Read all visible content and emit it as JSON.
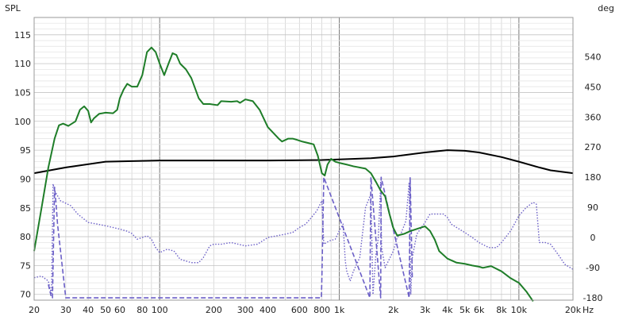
{
  "chart_data": {
    "type": "line",
    "title": "",
    "left_axis_label": "SPL",
    "right_axis_label": "deg",
    "x_unit_label": "Hz",
    "x_scale": "log",
    "xlim": [
      20,
      20000
    ],
    "ylim_left": [
      69,
      118
    ],
    "ylim_right": [
      -187,
      657
    ],
    "grid": true,
    "x_ticks": [
      {
        "value": 20,
        "label": "20"
      },
      {
        "value": 30,
        "label": "30"
      },
      {
        "value": 40,
        "label": "40"
      },
      {
        "value": 50,
        "label": "50"
      },
      {
        "value": 60,
        "label": "60"
      },
      {
        "value": 80,
        "label": "80"
      },
      {
        "value": 100,
        "label": "100"
      },
      {
        "value": 200,
        "label": "200"
      },
      {
        "value": 300,
        "label": "300"
      },
      {
        "value": 400,
        "label": "400"
      },
      {
        "value": 600,
        "label": "600"
      },
      {
        "value": 800,
        "label": "800"
      },
      {
        "value": 1000,
        "label": "1k"
      },
      {
        "value": 2000,
        "label": "2k"
      },
      {
        "value": 3000,
        "label": "3k"
      },
      {
        "value": 4000,
        "label": "4k"
      },
      {
        "value": 5000,
        "label": "5k"
      },
      {
        "value": 6000,
        "label": "6k"
      },
      {
        "value": 8000,
        "label": "8k"
      },
      {
        "value": 10000,
        "label": "10k"
      },
      {
        "value": 20000,
        "label": "20k"
      }
    ],
    "y_ticks_left": [
      {
        "value": 70,
        "label": "70"
      },
      {
        "value": 75,
        "label": "75"
      },
      {
        "value": 80,
        "label": "80"
      },
      {
        "value": 85,
        "label": "85"
      },
      {
        "value": 90,
        "label": "90"
      },
      {
        "value": 95,
        "label": "95"
      },
      {
        "value": 100,
        "label": "100"
      },
      {
        "value": 105,
        "label": "105"
      },
      {
        "value": 110,
        "label": "110"
      },
      {
        "value": 115,
        "label": "115"
      }
    ],
    "y_ticks_right": [
      {
        "value": -180,
        "label": "-180"
      },
      {
        "value": -90,
        "label": "-90"
      },
      {
        "value": 0,
        "label": "0"
      },
      {
        "value": 90,
        "label": "90"
      },
      {
        "value": 180,
        "label": "180"
      },
      {
        "value": 270,
        "label": "270"
      },
      {
        "value": 360,
        "label": "360"
      },
      {
        "value": 450,
        "label": "450"
      },
      {
        "value": 540,
        "label": "540"
      }
    ],
    "series": [
      {
        "axis": "left",
        "color": "#1e7d28",
        "style": "solid",
        "points": [
          [
            20,
            77.5
          ],
          [
            22,
            85
          ],
          [
            24,
            92
          ],
          [
            26,
            97
          ],
          [
            27.5,
            99.3
          ],
          [
            29,
            99.6
          ],
          [
            31,
            99.2
          ],
          [
            34,
            100
          ],
          [
            36,
            102
          ],
          [
            38,
            102.6
          ],
          [
            40,
            101.8
          ],
          [
            41.5,
            99.8
          ],
          [
            43,
            100.5
          ],
          [
            46,
            101.3
          ],
          [
            50,
            101.5
          ],
          [
            55,
            101.4
          ],
          [
            58,
            102
          ],
          [
            60,
            104
          ],
          [
            63,
            105.5
          ],
          [
            66,
            106.5
          ],
          [
            70,
            106
          ],
          [
            75,
            106
          ],
          [
            80,
            108
          ],
          [
            85,
            112
          ],
          [
            90,
            112.8
          ],
          [
            95,
            112
          ],
          [
            100,
            110
          ],
          [
            106,
            108
          ],
          [
            112,
            110
          ],
          [
            118,
            111.8
          ],
          [
            124,
            111.5
          ],
          [
            130,
            110
          ],
          [
            140,
            109
          ],
          [
            150,
            107.5
          ],
          [
            165,
            104
          ],
          [
            175,
            103
          ],
          [
            190,
            103
          ],
          [
            210,
            102.8
          ],
          [
            220,
            103.5
          ],
          [
            250,
            103.4
          ],
          [
            270,
            103.5
          ],
          [
            280,
            103.2
          ],
          [
            300,
            103.8
          ],
          [
            330,
            103.5
          ],
          [
            360,
            102
          ],
          [
            400,
            99
          ],
          [
            460,
            97
          ],
          [
            480,
            96.5
          ],
          [
            520,
            97
          ],
          [
            550,
            97
          ],
          [
            580,
            96.8
          ],
          [
            620,
            96.5
          ],
          [
            680,
            96.2
          ],
          [
            720,
            96
          ],
          [
            760,
            94
          ],
          [
            800,
            91
          ],
          [
            830,
            90.6
          ],
          [
            860,
            92.5
          ],
          [
            900,
            93.5
          ],
          [
            950,
            93
          ],
          [
            1000,
            92.8
          ],
          [
            1100,
            92.5
          ],
          [
            1200,
            92.2
          ],
          [
            1400,
            91.8
          ],
          [
            1500,
            91
          ],
          [
            1600,
            89.5
          ],
          [
            1700,
            88
          ],
          [
            1800,
            87
          ],
          [
            1900,
            84
          ],
          [
            2000,
            81.5
          ],
          [
            2100,
            80.2
          ],
          [
            2300,
            80.5
          ],
          [
            2500,
            81
          ],
          [
            2800,
            81.5
          ],
          [
            3000,
            81.8
          ],
          [
            3200,
            81
          ],
          [
            3400,
            79.5
          ],
          [
            3600,
            77.5
          ],
          [
            4000,
            76.2
          ],
          [
            4500,
            75.5
          ],
          [
            5000,
            75.3
          ],
          [
            5500,
            75
          ],
          [
            6000,
            74.8
          ],
          [
            6300,
            74.6
          ],
          [
            7000,
            74.9
          ],
          [
            8000,
            74
          ],
          [
            9000,
            72.8
          ],
          [
            10000,
            72
          ],
          [
            11000,
            70.5
          ],
          [
            12000,
            68.8
          ]
        ]
      },
      {
        "axis": "left",
        "color": "#000000",
        "style": "solid",
        "points": [
          [
            20,
            91
          ],
          [
            30,
            92
          ],
          [
            50,
            93
          ],
          [
            100,
            93.2
          ],
          [
            200,
            93.2
          ],
          [
            400,
            93.2
          ],
          [
            800,
            93.3
          ],
          [
            1000,
            93.4
          ],
          [
            1500,
            93.6
          ],
          [
            2000,
            93.9
          ],
          [
            3000,
            94.6
          ],
          [
            4000,
            95
          ],
          [
            5000,
            94.9
          ],
          [
            6000,
            94.6
          ],
          [
            8000,
            93.8
          ],
          [
            10000,
            93
          ],
          [
            13000,
            92
          ],
          [
            15000,
            91.5
          ],
          [
            20000,
            91
          ]
        ]
      },
      {
        "axis": "right",
        "color": "#6b5fc7",
        "style": "dotted",
        "points": [
          [
            20,
            -120
          ],
          [
            22,
            -115
          ],
          [
            24,
            -130
          ],
          [
            25,
            -170
          ],
          [
            25.5,
            160
          ],
          [
            26,
            140
          ],
          [
            28,
            110
          ],
          [
            32,
            95
          ],
          [
            35,
            70
          ],
          [
            40,
            45
          ],
          [
            45,
            40
          ],
          [
            50,
            35
          ],
          [
            55,
            30
          ],
          [
            60,
            25
          ],
          [
            65,
            20
          ],
          [
            70,
            12
          ],
          [
            75,
            -5
          ],
          [
            80,
            0
          ],
          [
            85,
            5
          ],
          [
            90,
            -5
          ],
          [
            95,
            -30
          ],
          [
            100,
            -45
          ],
          [
            110,
            -35
          ],
          [
            120,
            -40
          ],
          [
            130,
            -65
          ],
          [
            150,
            -75
          ],
          [
            165,
            -75
          ],
          [
            175,
            -60
          ],
          [
            190,
            -25
          ],
          [
            200,
            -20
          ],
          [
            220,
            -20
          ],
          [
            250,
            -15
          ],
          [
            300,
            -25
          ],
          [
            350,
            -20
          ],
          [
            400,
            0
          ],
          [
            500,
            10
          ],
          [
            550,
            15
          ],
          [
            600,
            30
          ],
          [
            650,
            40
          ],
          [
            700,
            60
          ],
          [
            750,
            80
          ],
          [
            800,
            110
          ],
          [
            820,
            -20
          ],
          [
            880,
            -10
          ],
          [
            950,
            -5
          ],
          [
            1000,
            20
          ],
          [
            1050,
            40
          ],
          [
            1080,
            -70
          ],
          [
            1100,
            -100
          ],
          [
            1150,
            -130
          ],
          [
            1200,
            -100
          ],
          [
            1300,
            -60
          ],
          [
            1400,
            90
          ],
          [
            1500,
            130
          ],
          [
            1540,
            -170
          ],
          [
            1600,
            -50
          ],
          [
            1650,
            0
          ],
          [
            1700,
            165
          ],
          [
            1720,
            -30
          ],
          [
            1800,
            -90
          ],
          [
            2000,
            -40
          ],
          [
            2100,
            0
          ],
          [
            2200,
            10
          ],
          [
            2350,
            50
          ],
          [
            2450,
            165
          ],
          [
            2500,
            -170
          ],
          [
            2550,
            -60
          ],
          [
            2700,
            10
          ],
          [
            3000,
            45
          ],
          [
            3200,
            70
          ],
          [
            3500,
            70
          ],
          [
            3800,
            70
          ],
          [
            4000,
            60
          ],
          [
            4200,
            40
          ],
          [
            4500,
            30
          ],
          [
            5000,
            15
          ],
          [
            5500,
            0
          ],
          [
            6000,
            -15
          ],
          [
            6800,
            -30
          ],
          [
            7500,
            -30
          ],
          [
            8000,
            -15
          ],
          [
            9000,
            20
          ],
          [
            10000,
            65
          ],
          [
            11000,
            90
          ],
          [
            12000,
            105
          ],
          [
            12500,
            100
          ],
          [
            13000,
            -15
          ],
          [
            14000,
            -15
          ],
          [
            15000,
            -20
          ],
          [
            16000,
            -40
          ],
          [
            17000,
            -60
          ],
          [
            18000,
            -80
          ],
          [
            20000,
            -95
          ]
        ]
      },
      {
        "axis": "right",
        "color": "#6b5fc7",
        "style": "dashed",
        "points": [
          [
            24,
            -140
          ],
          [
            25,
            -180
          ],
          [
            25.3,
            -180
          ],
          [
            26,
            150
          ],
          [
            26.5,
            100
          ],
          [
            27,
            40
          ],
          [
            30,
            -180
          ],
          [
            795,
            -180
          ],
          [
            800,
            -120
          ],
          [
            820,
            180
          ],
          [
            1480,
            -180
          ],
          [
            1500,
            180
          ],
          [
            1700,
            -180
          ],
          [
            1710,
            180
          ],
          [
            2450,
            -180
          ],
          [
            2480,
            180
          ],
          [
            2550,
            -120
          ]
        ]
      }
    ]
  }
}
